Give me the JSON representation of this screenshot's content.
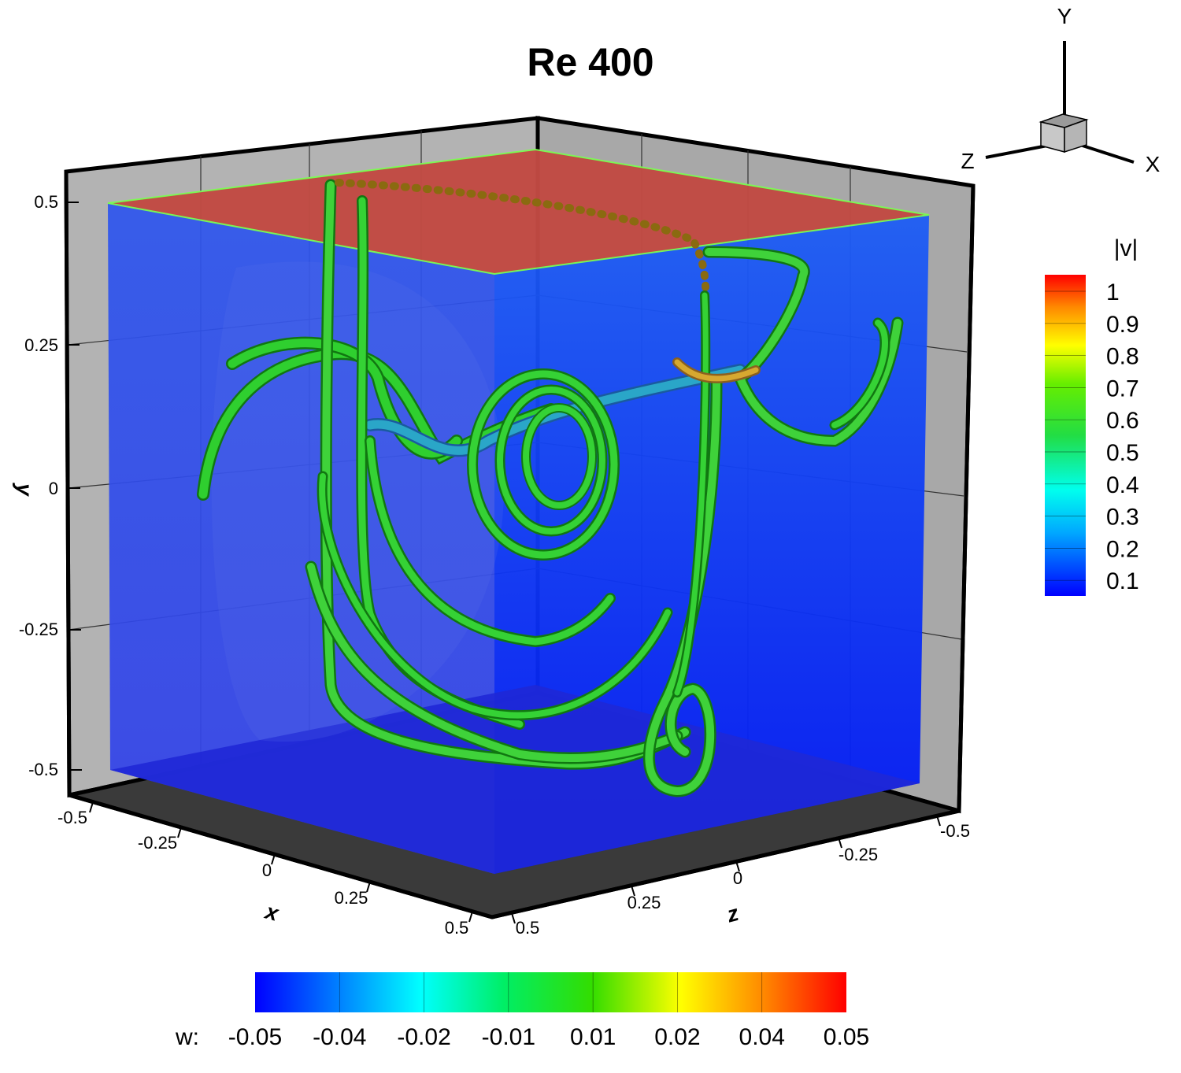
{
  "title": "Re 400",
  "axes_triad": {
    "y": "Y",
    "z": "Z",
    "x": "X"
  },
  "vmag_legend": {
    "title": "|v|",
    "levels": [
      "1",
      "0.9",
      "0.8",
      "0.7",
      "0.6",
      "0.5",
      "0.4",
      "0.3",
      "0.2",
      "0.1"
    ]
  },
  "w_legend": {
    "prefix": "w:",
    "levels": [
      "-0.05",
      "-0.04",
      "-0.02",
      "-0.01",
      "0.01",
      "0.02",
      "0.04",
      "0.05"
    ]
  },
  "colors": {
    "lid": "#c84a3c",
    "wall": "#2a3ff0",
    "floor_shadow": "#3c3c3c",
    "frame_gray": "#b0b0b0",
    "streamline_main": "#2fcf2f",
    "streamline_edge": "#117711"
  },
  "chart_data": {
    "type": "3d-streamlines",
    "title": "Re 400",
    "xlabel": "x",
    "ylabel": "y",
    "zlabel": "z",
    "xlim": [
      -0.5,
      0.5
    ],
    "ylim": [
      -0.5,
      0.5
    ],
    "zlim": [
      -0.5,
      0.5
    ],
    "x_ticks": [
      "-0.5",
      "-0.25",
      "0",
      "0.25",
      "0.5"
    ],
    "y_ticks": [
      "0.5",
      "0.25",
      "0",
      "-0.25",
      "-0.5"
    ],
    "z_ticks": [
      "0.5",
      "0.25",
      "0",
      "-0.25",
      "-0.5"
    ],
    "colorbars": [
      {
        "variable": "|v|",
        "range": [
          0.1,
          1
        ],
        "orientation": "vertical",
        "placement": "right"
      },
      {
        "variable": "w",
        "range": [
          -0.05,
          0.05
        ],
        "orientation": "horizontal",
        "placement": "bottom"
      }
    ],
    "grid": true
  }
}
